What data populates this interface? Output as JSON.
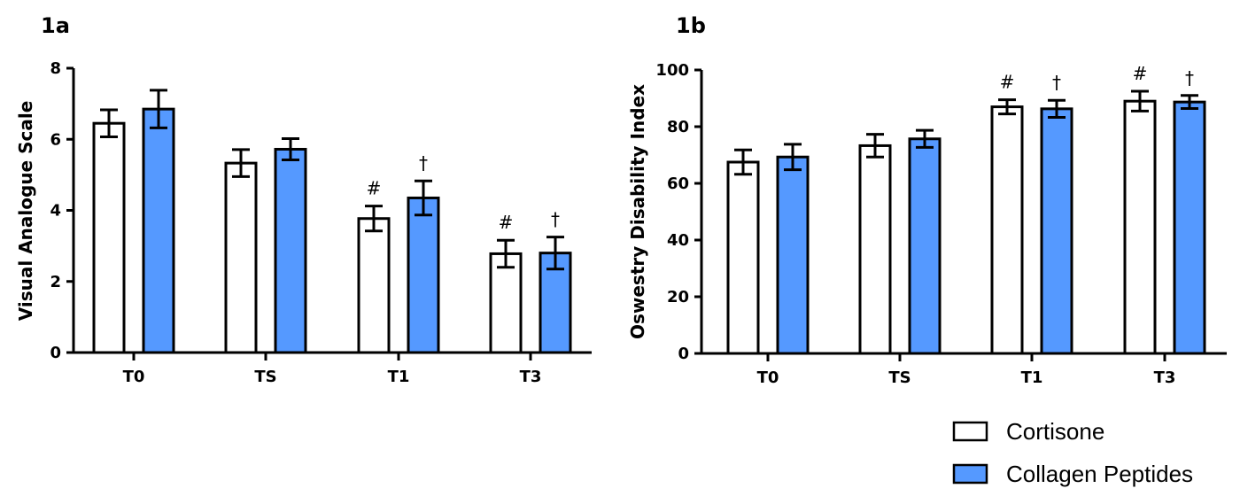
{
  "chart_data": [
    {
      "type": "bar",
      "panel_label": "1a",
      "ylabel": "Visual Analogue Scale",
      "categories": [
        "T0",
        "TS",
        "T1",
        "T3"
      ],
      "ylim": [
        0,
        8
      ],
      "yticks": [
        0,
        2,
        4,
        6,
        8
      ],
      "series": [
        {
          "name": "Cortisone",
          "values": [
            6.45,
            5.33,
            3.77,
            2.78
          ],
          "errors": [
            0.38,
            0.38,
            0.35,
            0.38
          ],
          "annotations": [
            "",
            "",
            "#",
            "#"
          ]
        },
        {
          "name": "Collagen Peptides",
          "values": [
            6.85,
            5.72,
            4.35,
            2.8
          ],
          "errors": [
            0.53,
            0.3,
            0.48,
            0.45
          ],
          "annotations": [
            "",
            "",
            "†",
            "†"
          ]
        }
      ]
    },
    {
      "type": "bar",
      "panel_label": "1b",
      "ylabel": "Oswestry Disability Index",
      "categories": [
        "T0",
        "TS",
        "T1",
        "T3"
      ],
      "ylim": [
        0,
        100
      ],
      "yticks": [
        0,
        20,
        40,
        60,
        80,
        100
      ],
      "series": [
        {
          "name": "Cortisone",
          "values": [
            67.5,
            73.3,
            87.0,
            89.0
          ],
          "errors": [
            4.3,
            4.0,
            2.5,
            3.5
          ],
          "annotations": [
            "",
            "",
            "#",
            "#"
          ]
        },
        {
          "name": "Collagen Peptides",
          "values": [
            69.3,
            75.7,
            86.3,
            88.7
          ],
          "errors": [
            4.5,
            3.0,
            3.0,
            2.3
          ],
          "annotations": [
            "",
            "",
            "†",
            "†"
          ]
        }
      ]
    }
  ],
  "legend": {
    "items": [
      {
        "label": "Cortisone",
        "color": "#ffffff"
      },
      {
        "label": "Collagen Peptides",
        "color": "#5599ff"
      }
    ]
  },
  "colors": {
    "cortisone": "#ffffff",
    "collagen": "#5599ff",
    "stroke": "#000000"
  }
}
